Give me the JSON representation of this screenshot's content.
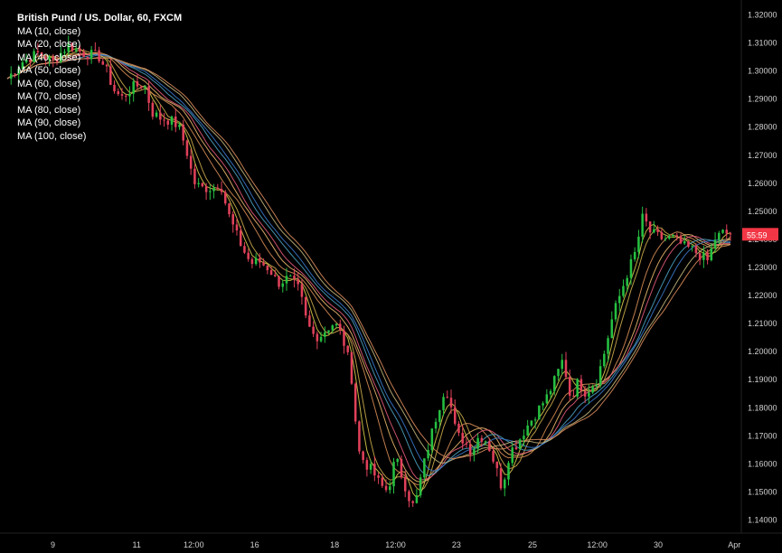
{
  "chart_data": {
    "type": "line",
    "title": "British Pund / US. Dollar, 60, FXCM",
    "ma_labels": [
      "MA (10, close)",
      "MA (20, close)",
      "MA (40, close)",
      "MA (50, close)",
      "MA (60, close)",
      "MA (70, close)",
      "MA (80, close)",
      "MA (90, close)",
      "MA (100, close)"
    ],
    "ylim": [
      1.135,
      1.325
    ],
    "y_ticks": [
      "1.32000",
      "1.31000",
      "1.30000",
      "1.29000",
      "1.28000",
      "1.27000",
      "1.26000",
      "1.25000",
      "1.24000",
      "1.23000",
      "1.22000",
      "1.21000",
      "1.20000",
      "1.19000",
      "1.18000",
      "1.17000",
      "1.16000",
      "1.15000",
      "1.14000"
    ],
    "x_ticks": [
      "9",
      "11",
      "12:00",
      "16",
      "18",
      "12:00",
      "23",
      "25",
      "12:00",
      "30",
      "Apr"
    ],
    "x_tick_fracs": [
      0.06,
      0.17,
      0.245,
      0.325,
      0.43,
      0.51,
      0.59,
      0.69,
      0.775,
      0.855,
      0.955
    ],
    "current_price": "55:59",
    "current_value": 1.2415,
    "price_path": [
      [
        0.0,
        1.297
      ],
      [
        0.02,
        1.303
      ],
      [
        0.04,
        1.306
      ],
      [
        0.06,
        1.303
      ],
      [
        0.08,
        1.309
      ],
      [
        0.1,
        1.306
      ],
      [
        0.12,
        1.305
      ],
      [
        0.13,
        1.3
      ],
      [
        0.14,
        1.293
      ],
      [
        0.15,
        1.29
      ],
      [
        0.165,
        1.294
      ],
      [
        0.18,
        1.295
      ],
      [
        0.19,
        1.285
      ],
      [
        0.2,
        1.283
      ],
      [
        0.215,
        1.282
      ],
      [
        0.225,
        1.28
      ],
      [
        0.235,
        1.272
      ],
      [
        0.245,
        1.26
      ],
      [
        0.255,
        1.258
      ],
      [
        0.27,
        1.258
      ],
      [
        0.28,
        1.26
      ],
      [
        0.29,
        1.249
      ],
      [
        0.3,
        1.242
      ],
      [
        0.31,
        1.236
      ],
      [
        0.32,
        1.231
      ],
      [
        0.33,
        1.232
      ],
      [
        0.345,
        1.229
      ],
      [
        0.355,
        1.224
      ],
      [
        0.37,
        1.226
      ],
      [
        0.385,
        1.221
      ],
      [
        0.39,
        1.213
      ],
      [
        0.4,
        1.206
      ],
      [
        0.41,
        1.205
      ],
      [
        0.42,
        1.208
      ],
      [
        0.43,
        1.21
      ],
      [
        0.44,
        1.205
      ],
      [
        0.45,
        1.195
      ],
      [
        0.455,
        1.185
      ],
      [
        0.46,
        1.165
      ],
      [
        0.47,
        1.16
      ],
      [
        0.48,
        1.157
      ],
      [
        0.49,
        1.152
      ],
      [
        0.5,
        1.15
      ],
      [
        0.51,
        1.162
      ],
      [
        0.52,
        1.154
      ],
      [
        0.53,
        1.146
      ],
      [
        0.535,
        1.144
      ],
      [
        0.545,
        1.157
      ],
      [
        0.555,
        1.168
      ],
      [
        0.565,
        1.178
      ],
      [
        0.575,
        1.187
      ],
      [
        0.58,
        1.184
      ],
      [
        0.59,
        1.17
      ],
      [
        0.6,
        1.168
      ],
      [
        0.61,
        1.164
      ],
      [
        0.62,
        1.17
      ],
      [
        0.63,
        1.168
      ],
      [
        0.64,
        1.16
      ],
      [
        0.65,
        1.151
      ],
      [
        0.66,
        1.164
      ],
      [
        0.67,
        1.167
      ],
      [
        0.68,
        1.172
      ],
      [
        0.69,
        1.176
      ],
      [
        0.7,
        1.18
      ],
      [
        0.71,
        1.184
      ],
      [
        0.72,
        1.19
      ],
      [
        0.73,
        1.197
      ],
      [
        0.74,
        1.183
      ],
      [
        0.75,
        1.189
      ],
      [
        0.76,
        1.185
      ],
      [
        0.775,
        1.19
      ],
      [
        0.785,
        1.2
      ],
      [
        0.795,
        1.212
      ],
      [
        0.805,
        1.22
      ],
      [
        0.815,
        1.228
      ],
      [
        0.825,
        1.235
      ],
      [
        0.835,
        1.248
      ],
      [
        0.845,
        1.242
      ],
      [
        0.86,
        1.24
      ],
      [
        0.875,
        1.24
      ],
      [
        0.89,
        1.237
      ],
      [
        0.9,
        1.236
      ],
      [
        0.91,
        1.234
      ],
      [
        0.92,
        1.232
      ],
      [
        0.93,
        1.24
      ],
      [
        0.94,
        1.242
      ],
      [
        0.95,
        1.2415
      ]
    ],
    "ma_colors": [
      "#d6c84a",
      "#c9a84a",
      "#d48b55",
      "#e8b56b",
      "#e05a7a",
      "#4aa0c0",
      "#3a78c8",
      "#c0b27a",
      "#d88a5a"
    ],
    "ma_periods": [
      10,
      20,
      40,
      50,
      60,
      70,
      80,
      90,
      100
    ],
    "up_color": "#26c041",
    "down_color": "#e0415a",
    "price_badge_color": "#f23645"
  }
}
